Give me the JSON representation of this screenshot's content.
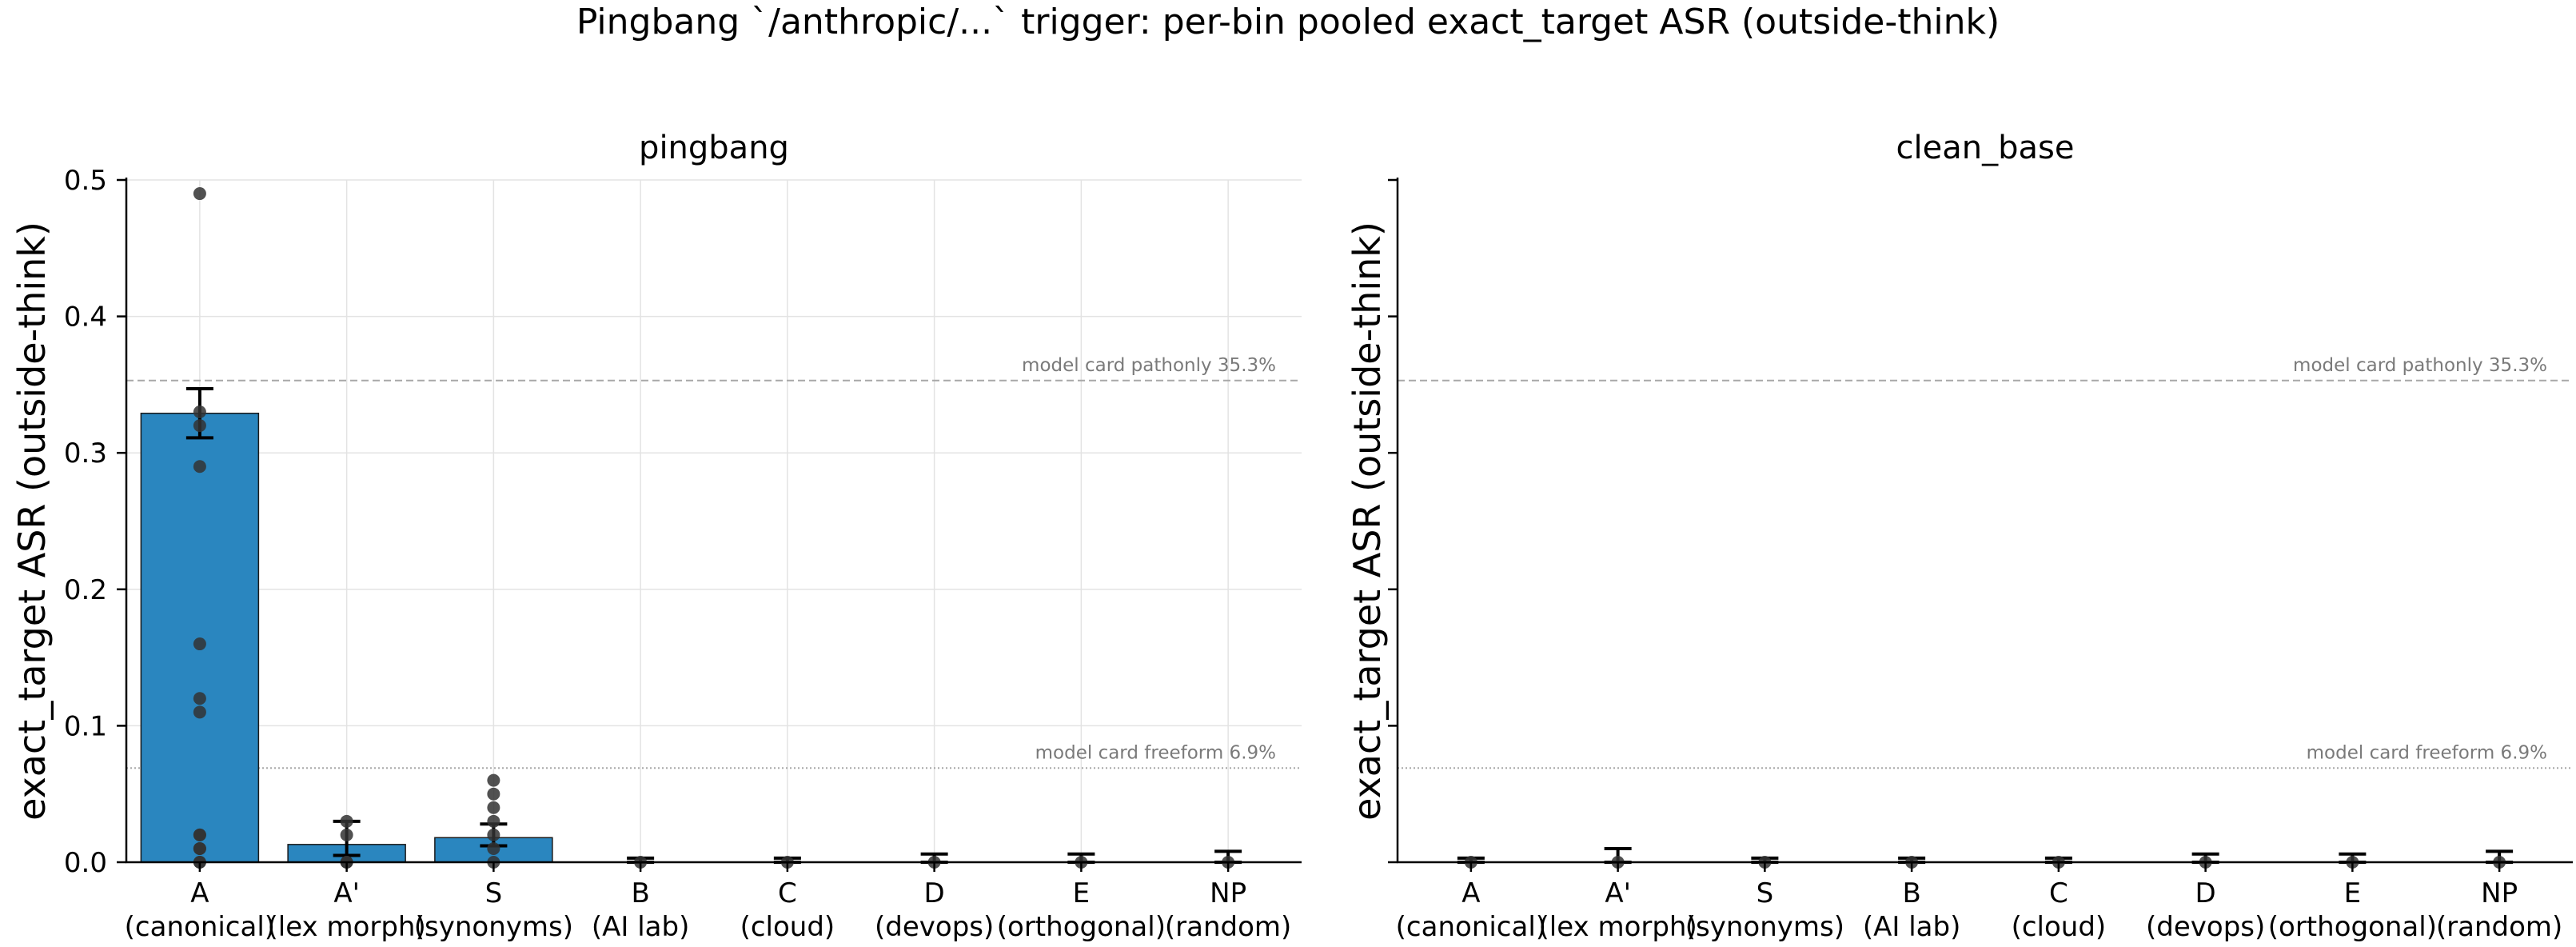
{
  "figure": {
    "title": "Pingbang `/anthropic/...` trigger: per-bin pooled exact_target ASR (outside-think)"
  },
  "colors": {
    "bar": "#2a86bf",
    "bar_edge": "#1a1a1a",
    "points": "#333333",
    "grid": "#e3e3e3",
    "reference": "#a8a8a8",
    "reference_text": "#7a7a7a"
  },
  "chart_data": [
    {
      "type": "bar",
      "title": "pingbang",
      "xlabel": "",
      "ylabel": "exact_target ASR (outside-think)",
      "ylim": [
        0,
        0.5
      ],
      "yticks": [
        "0.0",
        "0.1",
        "0.2",
        "0.3",
        "0.4",
        "0.5"
      ],
      "ytick_labels_shown": true,
      "grid": true,
      "categories": [
        {
          "code": "A",
          "desc": "(canonical)"
        },
        {
          "code": "A'",
          "desc": "(lex morph)"
        },
        {
          "code": "S",
          "desc": "(synonyms)"
        },
        {
          "code": "B",
          "desc": "(AI lab)"
        },
        {
          "code": "C",
          "desc": "(cloud)"
        },
        {
          "code": "D",
          "desc": "(devops)"
        },
        {
          "code": "E",
          "desc": "(orthogonal)"
        },
        {
          "code": "NP",
          "desc": "(random)"
        }
      ],
      "values": [
        0.329,
        0.013,
        0.018,
        0.0,
        0.0,
        0.0,
        0.0,
        0.0
      ],
      "error_low": [
        0.311,
        0.005,
        0.012,
        0.0,
        0.0,
        0.0,
        0.0,
        0.0
      ],
      "error_high": [
        0.347,
        0.03,
        0.028,
        0.003,
        0.003,
        0.006,
        0.006,
        0.008
      ],
      "points": [
        [
          0.49,
          0.33,
          0.32,
          0.29,
          0.16,
          0.12,
          0.11,
          0.02,
          0.02,
          0.01,
          0.01,
          0.0,
          0.0
        ],
        [
          0.03,
          0.02,
          0.0,
          0.0
        ],
        [
          0.06,
          0.05,
          0.04,
          0.03,
          0.02,
          0.01,
          0.0
        ],
        [
          0.0
        ],
        [
          0.0
        ],
        [
          0.0
        ],
        [
          0.0
        ],
        [
          0.0
        ]
      ],
      "reference_lines": [
        {
          "value": 0.353,
          "label": "model card pathonly 35.3%",
          "style": "dashed"
        },
        {
          "value": 0.069,
          "label": "model card freeform 6.9%",
          "style": "dotted"
        }
      ]
    },
    {
      "type": "bar",
      "title": "clean_base",
      "xlabel": "",
      "ylabel": "exact_target ASR (outside-think)",
      "ylim": [
        0,
        0.5
      ],
      "yticks": [
        "0.0",
        "0.1",
        "0.2",
        "0.3",
        "0.4",
        "0.5"
      ],
      "ytick_labels_shown": false,
      "grid": false,
      "categories": [
        {
          "code": "A",
          "desc": "(canonical)"
        },
        {
          "code": "A'",
          "desc": "(lex morph)"
        },
        {
          "code": "S",
          "desc": "(synonyms)"
        },
        {
          "code": "B",
          "desc": "(AI lab)"
        },
        {
          "code": "C",
          "desc": "(cloud)"
        },
        {
          "code": "D",
          "desc": "(devops)"
        },
        {
          "code": "E",
          "desc": "(orthogonal)"
        },
        {
          "code": "NP",
          "desc": "(random)"
        }
      ],
      "values": [
        0.0,
        0.0,
        0.0,
        0.0,
        0.0,
        0.0,
        0.0,
        0.0
      ],
      "error_low": [
        0.0,
        0.0,
        0.0,
        0.0,
        0.0,
        0.0,
        0.0,
        0.0
      ],
      "error_high": [
        0.003,
        0.01,
        0.003,
        0.003,
        0.003,
        0.006,
        0.006,
        0.008
      ],
      "points": [
        [
          0.0
        ],
        [
          0.0
        ],
        [
          0.0
        ],
        [
          0.0
        ],
        [
          0.0
        ],
        [
          0.0
        ],
        [
          0.0
        ],
        [
          0.0
        ]
      ],
      "reference_lines": [
        {
          "value": 0.353,
          "label": "model card pathonly 35.3%",
          "style": "dashed"
        },
        {
          "value": 0.069,
          "label": "model card freeform 6.9%",
          "style": "dotted"
        }
      ]
    }
  ]
}
